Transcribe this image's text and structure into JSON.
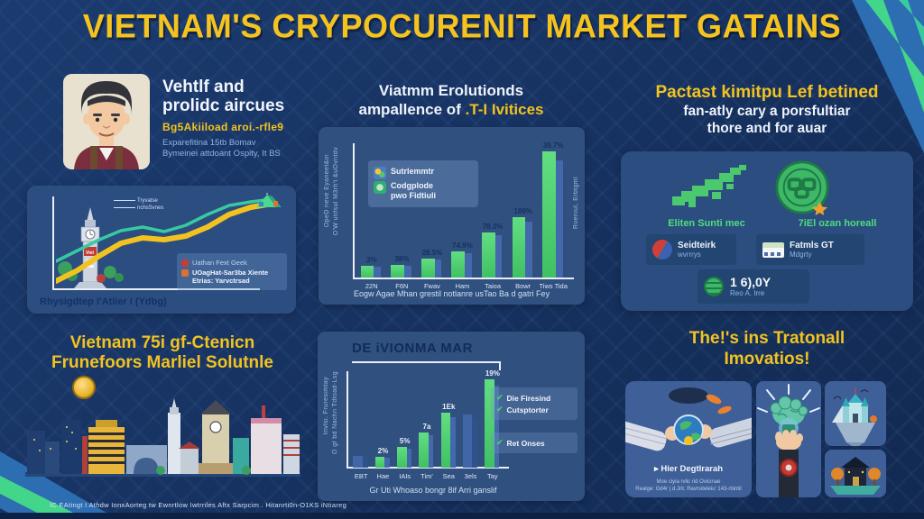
{
  "header": {
    "title": "VIETNAM'S CRYPOCURENIT MARKET GATAINS"
  },
  "colors": {
    "background": "#16315f",
    "panel_blue": "#2c4d7f",
    "accent_yellow": "#f2c320",
    "bar_green": "#46cd6d",
    "bar_blue": "#4066a8",
    "text_green": "#4ede7d",
    "stripe_green": "#43d68b",
    "stripe_teal": "#38cba0"
  },
  "profile": {
    "avatar_icon": "man-avatar",
    "heading_line1": "Vehtlf and",
    "heading_line2": "prolidc aircues",
    "subheading": "Bg5Akiiload aroi.-rfle9",
    "detail_line1": "Exparefitina 15tb Bomav",
    "detail_line2": "Bymeinei attdoant Ospity, It BS"
  },
  "growth_panel": {
    "annotation_line1": "Tryvatse",
    "annotation_line2": "nchsSvnes",
    "legend": [
      {
        "label": "Uathan Fext Geek"
      },
      {
        "label_line1": "UOagHat-Sar3ba Xiente",
        "label_line2": "Etrias: Yarvctrsad"
      }
    ],
    "caption": "Rhysigdtep I'Atlier I (Ydbg)"
  },
  "adoption_section": {
    "title_line1": "Viatmm Erolutionds",
    "title_line2_white": "ampallence of",
    "title_line2_yellow": " .T-I Ivitices",
    "legend": [
      {
        "label_line1": "Sutrlemmtr",
        "label_line2": ""
      },
      {
        "label_line1": "Codgplode",
        "label_line2": "pwo Fidtiuli"
      }
    ],
    "y_axis_line1": "OpeD neve Eyaneet&in",
    "y_axis_line2": "O'W utifsul M3rh't &uOvntdv",
    "right_note": "Roeniul, Erbtgml",
    "caption": "Eogw Agae Mhan grestil notlanre usTao Ba d gatri Fey"
  },
  "market_section": {
    "title_yellow": "Pactast kimitpu Lef betined",
    "title_line2": "fan-atly cary a porsfultiar",
    "title_line3": "thore and for auar",
    "map_label": "Eliten Sunti mec",
    "coin_label": "7iEl ozan horeall",
    "stat1_line1": "Seidteirk",
    "stat1_line2": "wvrrrys",
    "stat2_line1": "Fatmls GT",
    "stat2_line2": "Mdgrty",
    "big_stat_value": "1 6),0Y",
    "big_stat_label": "Reo A. Irre"
  },
  "city_section": {
    "title_line1": "Vietnam 75i gf-Ctenicn",
    "title_line2": "Frunefoors Marliel Solutnle"
  },
  "devionma_section": {
    "header": "DE iVIONMA MAR",
    "y_axis_line1": "Invlsi. Fruresimtay",
    "y_axis_line2": "O gf bd Nachn Tdtoad-Lsg",
    "legend_group1": [
      "Die Firesind",
      "Cutsptorter"
    ],
    "legend_group2": [
      "Ret Onses"
    ],
    "caption": "Gr Uti Whoaso bongr 8if Arri ganslif"
  },
  "innovation_section": {
    "title_line1": "The!'s ins Tratonall",
    "title_line2": "Imovatios!",
    "card_caption": "Hier Degtlrarah",
    "card_note_line1": "Moe ciyia rvlic rid Ovicinae",
    "card_note_line2": "Realge: Gd4r | d.Jrit. Ravrsiteleiu' 143-rbintil"
  },
  "footer": {
    "text": "IC EAtingt I Athdw IonxAorteg tw Ewnrtlow Iwtrriles Aftx Sarpcim . Hitanrti0n-O1KS iNtiareg"
  },
  "chart_data": [
    {
      "type": "line",
      "title": "",
      "x": [
        0,
        1,
        2,
        3,
        4,
        5,
        6,
        7,
        8,
        9,
        10
      ],
      "series": [
        {
          "name": "UOagHat-Sar3ba Xiente Etrias: Yarvctrsad",
          "color": "#f2c320",
          "values": [
            2,
            14,
            30,
            44,
            50,
            48,
            52,
            62,
            76,
            84,
            88
          ]
        },
        {
          "name": "Uathan Fext Geek",
          "color": "#38c9a2",
          "values": [
            24,
            36,
            48,
            58,
            62,
            57,
            64,
            76,
            86,
            90,
            93
          ]
        }
      ],
      "xlabel": "Rhysigdtep I'Atlier I (Ydbg)",
      "legend_position": "bottom-right",
      "grid": false
    },
    {
      "type": "bar",
      "categories": [
        "22N",
        "F6N",
        "Fwav",
        "Ham",
        "Taioa",
        "Bowr",
        "Tiws Tida"
      ],
      "values": [
        9,
        10,
        15,
        21,
        36,
        48,
        100
      ],
      "labels": [
        "3%",
        "38%",
        "28.5%",
        "74.9%",
        "78.3%",
        "189%",
        "39.7%"
      ],
      "colors": [
        "green",
        "green",
        "green",
        "green",
        "green",
        "green",
        "green"
      ],
      "title": "Viatmm Erolutionds ampallence of .T-I Ivitices",
      "xlabel": "Eogw Agae Mhan grestil notlanre usTao Ba d gatri Fey",
      "ylabel": "OpeD neve Eyaneet&in / O'W utifsul M3rh't &uOvntdv",
      "ylim": [
        0,
        100
      ],
      "grid": false
    },
    {
      "type": "bar",
      "categories": [
        "EBT",
        "Hae",
        "IAIs",
        "Tim'",
        "Sea",
        "3els",
        "Tay"
      ],
      "values": [
        13,
        12,
        23,
        40,
        62,
        60,
        100
      ],
      "labels": [
        "",
        "2%",
        "5%",
        "7a",
        "1Ek",
        "",
        "19%"
      ],
      "colors": [
        "blue",
        "green",
        "green",
        "green",
        "green",
        "blue",
        "green"
      ],
      "title": "DE iVIONMA MAR",
      "xlabel": "Gr Uti Whoaso bongr 8if Arri ganslif",
      "ylabel": "Invlsi. Fruresimtay / O gf bd Nachn Tdtoad-Lsg",
      "ylim": [
        0,
        100
      ],
      "grid": false
    }
  ]
}
